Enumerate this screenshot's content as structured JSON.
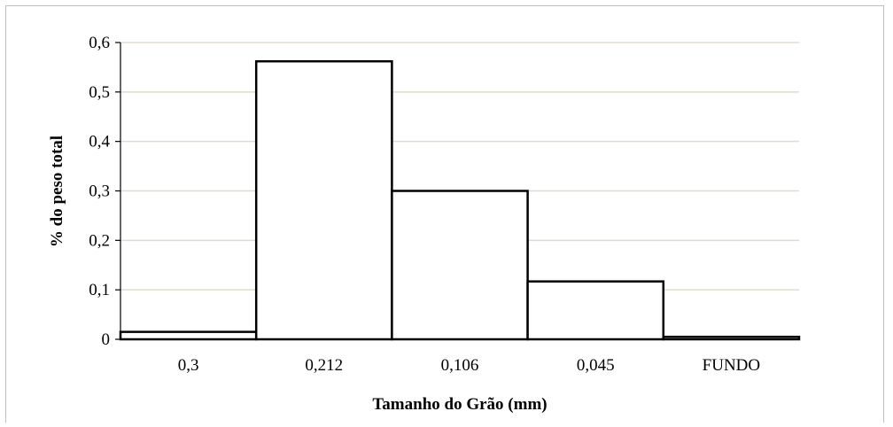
{
  "chart_data": {
    "type": "bar",
    "title": "",
    "xlabel": "Tamanho do Grão (mm)",
    "ylabel": "% do peso total",
    "categories": [
      "0,3",
      "0,212",
      "0,106",
      "0,045",
      "FUNDO"
    ],
    "values": [
      0.015,
      0.562,
      0.3,
      0.117,
      0.005
    ],
    "ylim": [
      0,
      0.6
    ],
    "yticks": [
      0,
      0.1,
      0.2,
      0.3,
      0.4,
      0.5,
      0.6
    ],
    "ytick_labels": [
      "0",
      "0,1",
      "0,2",
      "0,3",
      "0,4",
      "0,5",
      "0,6"
    ],
    "grid": true,
    "legend": "none",
    "colors": {
      "bar_fill": "#ffffff",
      "bar_stroke": "#000000",
      "gridline": "#e0dccb",
      "axis": "#000000"
    }
  }
}
